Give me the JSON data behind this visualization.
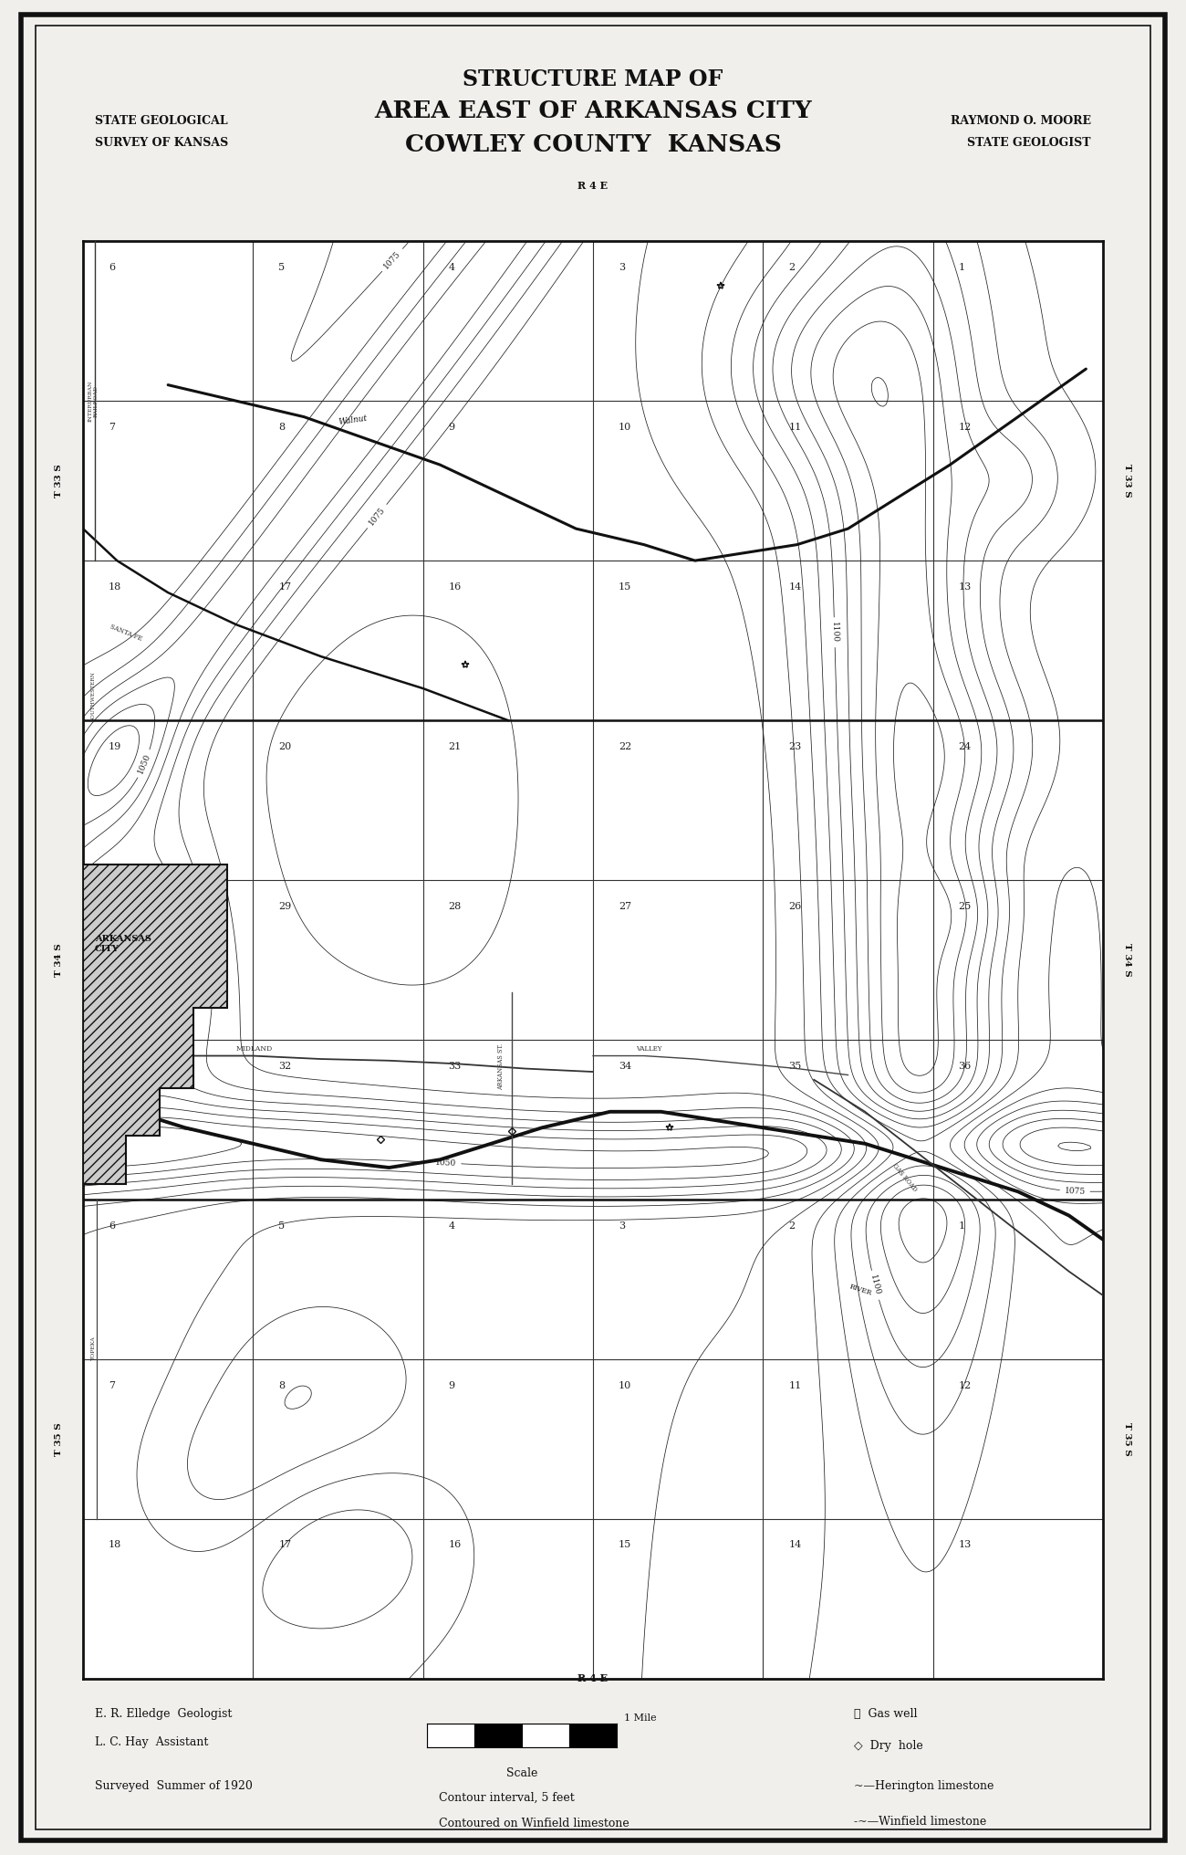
{
  "title_line1": "STRUCTURE MAP OF",
  "title_line2": "AREA EAST OF ARKANSAS CITY",
  "title_line3": "COWLEY COUNTY  KANSAS",
  "top_left_text1": "STATE GEOLOGICAL",
  "top_left_text2": "SURVEY OF KANSAS",
  "top_right_text1": "RAYMOND O. MOORE",
  "top_right_text2": "STATE GEOLOGIST",
  "bottom_left_text1": "E. R. Elledge  Geologist",
  "bottom_left_text2": "L. C. Hay  Assistant",
  "bottom_left_text3": "Surveyed  Summer of 1920",
  "bottom_mid_text1": "Scale",
  "bottom_mid_text2": "Contour interval, 5 feet",
  "bottom_mid_text3": "Contoured on Winfield limestone",
  "bottom_right_text1": "Gas well",
  "bottom_right_text2": "Dry  hole",
  "bottom_right_text3": "Herington limestone",
  "bottom_right_text4": "Winfield limestone",
  "range_label_top": "R 4 E",
  "range_label_bottom": "R 4 E",
  "bg_color": "#f0efeb",
  "map_bg": "#ffffff",
  "border_color": "#111111",
  "grid_color": "#333333",
  "contour_color": "#222222",
  "fig_width": 13.0,
  "fig_height": 20.32
}
